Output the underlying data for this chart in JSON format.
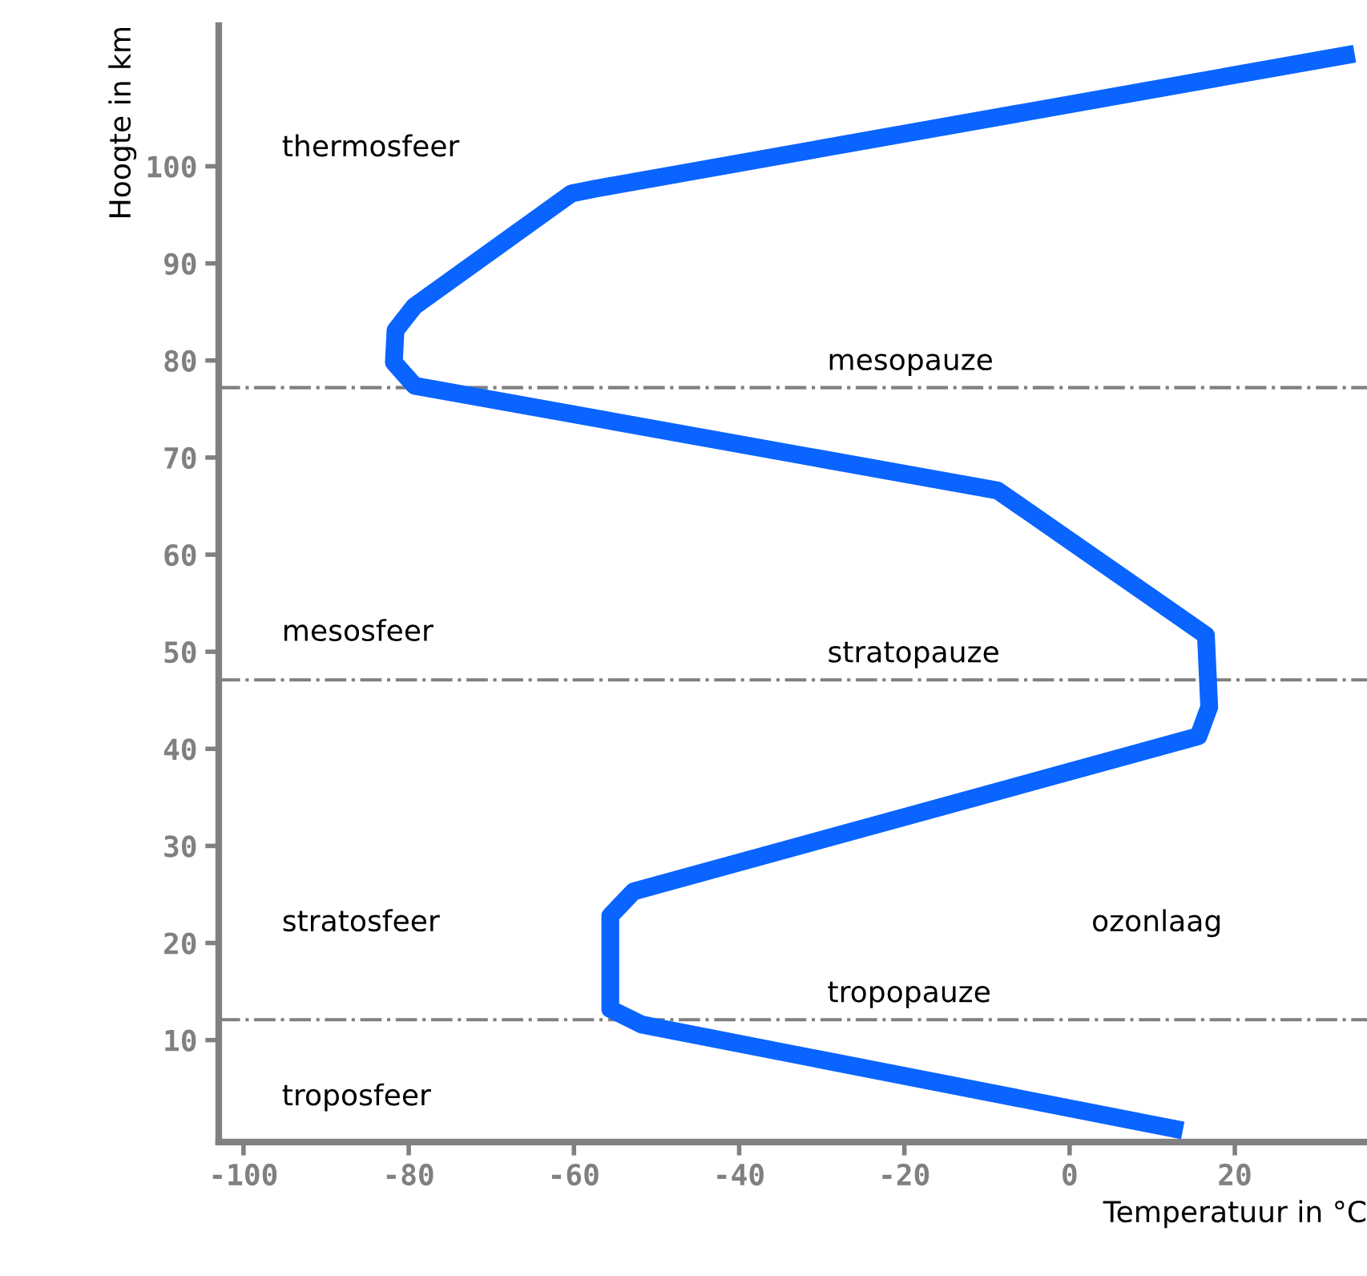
{
  "chart_data": {
    "type": "line",
    "xlabel": "Temperatuur in °C",
    "ylabel": "Hoogte in km",
    "series": [
      {
        "color": "#0a64ff",
        "x": [
          13.7,
          -51.8,
          -55.6,
          -55.6,
          -52.8,
          15.6,
          16.9,
          16.5,
          -8.7,
          -79.3,
          -81.8,
          -81.6,
          -79.3,
          -60.3,
          -57.4,
          34.5
        ],
        "values": [
          0.7,
          11.6,
          13.2,
          22.8,
          25.3,
          41.3,
          44.3,
          51.7,
          66.6,
          77.4,
          79.8,
          83.1,
          85.6,
          97.2,
          97.7,
          111.6
        ]
      }
    ],
    "xlim": [
      -103,
      36
    ],
    "ylim": [
      -0.5,
      114.5
    ],
    "xticks": [
      -100,
      -80,
      -60,
      -40,
      -20,
      0,
      20
    ],
    "yticks": [
      10,
      20,
      30,
      40,
      50,
      60,
      70,
      80,
      90,
      100
    ],
    "grid": false,
    "marker": "none",
    "line_style": "solid",
    "ref_lines": [
      {
        "axis": "y",
        "value": 77.2,
        "label": "mesopauze",
        "color": "#808080",
        "line_style": "dashdot"
      },
      {
        "axis": "y",
        "value": 47.1,
        "label": "stratopauze",
        "color": "#808080",
        "line_style": "dashdot"
      },
      {
        "axis": "y",
        "value": 12.1,
        "label": "tropopauze",
        "color": "#808080",
        "line_style": "dashdot"
      }
    ],
    "annotations": [
      "thermosfeer",
      "mesosfeer",
      "stratosfeer",
      "troposfeer",
      "ozonlaag"
    ]
  }
}
